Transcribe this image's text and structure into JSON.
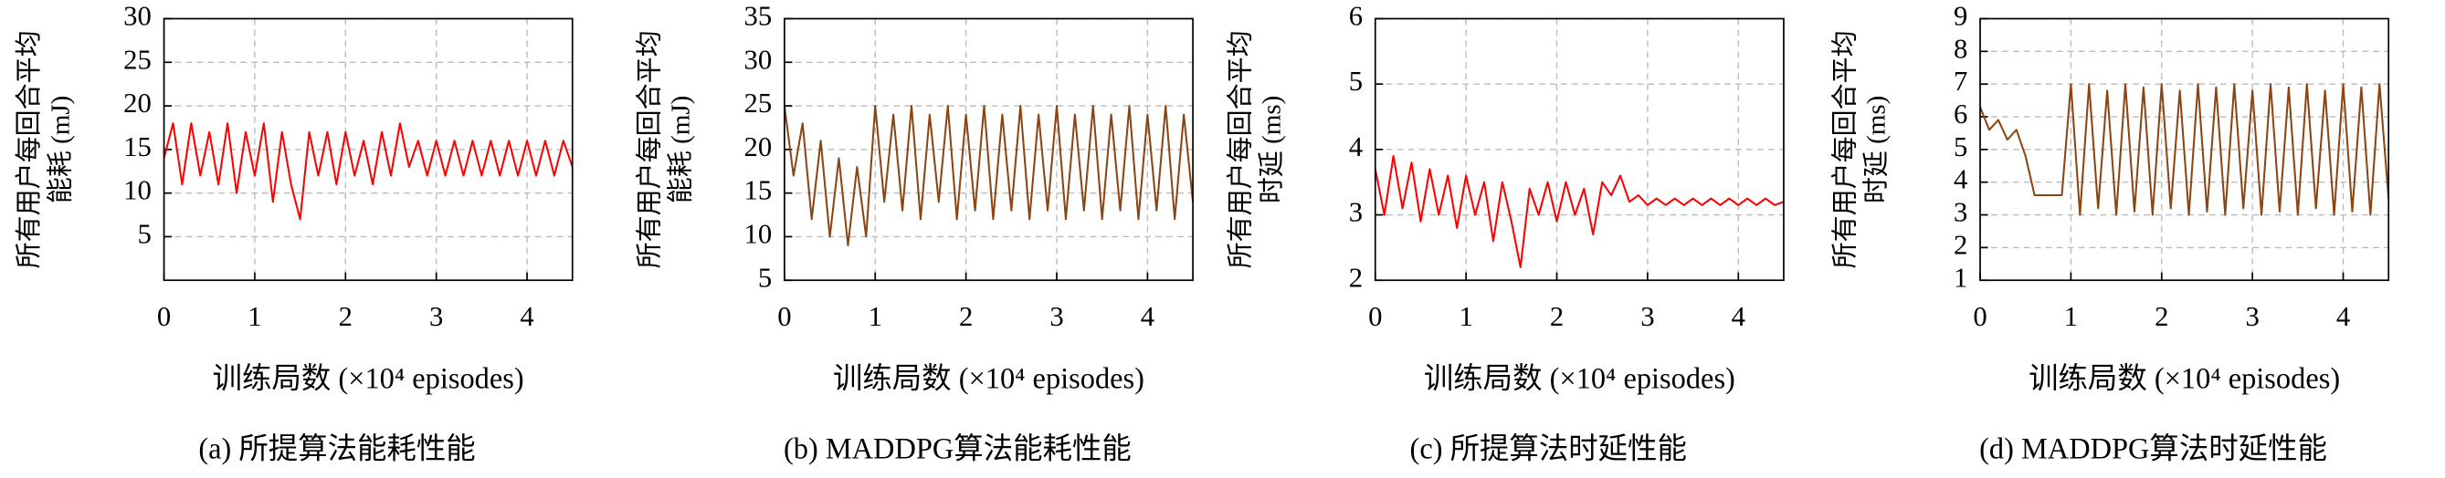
{
  "chart_data": [
    {
      "type": "line",
      "caption": "(a) 所提算法能耗性能",
      "xlabel": "训练局数 (×10⁴ episodes)",
      "ylabel": [
        "所有用户每回合平均",
        "能耗 (mJ)"
      ],
      "xlim": [
        0,
        4.5
      ],
      "xticks": [
        0,
        1,
        2,
        3,
        4
      ],
      "ylim": [
        0,
        30
      ],
      "yticks": [
        5,
        10,
        15,
        20,
        25,
        30
      ],
      "grid": true,
      "series": [
        {
          "color": "#ff0000",
          "x": [
            0,
            0.1,
            0.2,
            0.3,
            0.4,
            0.5,
            0.6,
            0.7,
            0.8,
            0.9,
            1.0,
            1.1,
            1.2,
            1.3,
            1.4,
            1.5,
            1.6,
            1.7,
            1.8,
            1.9,
            2.0,
            2.1,
            2.2,
            2.3,
            2.4,
            2.5,
            2.6,
            2.7,
            2.8,
            2.9,
            3.0,
            3.1,
            3.2,
            3.3,
            3.4,
            3.5,
            3.6,
            3.7,
            3.8,
            3.9,
            4.0,
            4.1,
            4.2,
            4.3,
            4.4,
            4.5
          ],
          "values": [
            14,
            18,
            11,
            18,
            12,
            17,
            11,
            18,
            10,
            17,
            12,
            18,
            9,
            17,
            11,
            7,
            17,
            12,
            17,
            11,
            17,
            12,
            16,
            11,
            17,
            12,
            18,
            13,
            16,
            12,
            16,
            12,
            16,
            12,
            16,
            12,
            16,
            12,
            16,
            12,
            16,
            12,
            16,
            12,
            16,
            13
          ]
        }
      ]
    },
    {
      "type": "line",
      "caption": "(b) MADDPG算法能耗性能",
      "xlabel": "训练局数 (×10⁴ episodes)",
      "ylabel": [
        "所有用户每回合平均",
        "能耗 (mJ)"
      ],
      "xlim": [
        0,
        4.5
      ],
      "xticks": [
        0,
        1,
        2,
        3,
        4
      ],
      "ylim": [
        5,
        35
      ],
      "yticks": [
        5,
        10,
        15,
        20,
        25,
        30,
        35
      ],
      "grid": true,
      "series": [
        {
          "color": "#8b4513",
          "x": [
            0,
            0.1,
            0.2,
            0.3,
            0.4,
            0.5,
            0.6,
            0.7,
            0.8,
            0.9,
            1.0,
            1.1,
            1.2,
            1.3,
            1.4,
            1.5,
            1.6,
            1.7,
            1.8,
            1.9,
            2.0,
            2.1,
            2.2,
            2.3,
            2.4,
            2.5,
            2.6,
            2.7,
            2.8,
            2.9,
            3.0,
            3.1,
            3.2,
            3.3,
            3.4,
            3.5,
            3.6,
            3.7,
            3.8,
            3.9,
            4.0,
            4.1,
            4.2,
            4.3,
            4.4,
            4.5
          ],
          "values": [
            25,
            17,
            23,
            12,
            21,
            10,
            19,
            9,
            18,
            10,
            25,
            14,
            24,
            13,
            25,
            12,
            24,
            14,
            25,
            12,
            24,
            13,
            25,
            12,
            24,
            13,
            25,
            12,
            24,
            13,
            25,
            12,
            24,
            13,
            25,
            12,
            24,
            13,
            25,
            12,
            24,
            13,
            25,
            12,
            24,
            14
          ]
        }
      ]
    },
    {
      "type": "line",
      "caption": "(c) 所提算法时延性能",
      "xlabel": "训练局数 (×10⁴ episodes)",
      "ylabel": [
        "所有用户每回合平均",
        "时延 (ms)"
      ],
      "xlim": [
        0,
        4.5
      ],
      "xticks": [
        0,
        1,
        2,
        3,
        4
      ],
      "ylim": [
        2,
        6
      ],
      "yticks": [
        2,
        3,
        4,
        5,
        6
      ],
      "grid": true,
      "series": [
        {
          "color": "#ff0000",
          "x": [
            0,
            0.1,
            0.2,
            0.3,
            0.4,
            0.5,
            0.6,
            0.7,
            0.8,
            0.9,
            1.0,
            1.1,
            1.2,
            1.3,
            1.4,
            1.5,
            1.6,
            1.7,
            1.8,
            1.9,
            2.0,
            2.1,
            2.2,
            2.3,
            2.4,
            2.5,
            2.6,
            2.7,
            2.8,
            2.9,
            3.0,
            3.1,
            3.2,
            3.3,
            3.4,
            3.5,
            3.6,
            3.7,
            3.8,
            3.9,
            4.0,
            4.1,
            4.2,
            4.3,
            4.4,
            4.5
          ],
          "values": [
            3.7,
            3.0,
            3.9,
            3.1,
            3.8,
            2.9,
            3.7,
            3.0,
            3.6,
            2.8,
            3.6,
            3.0,
            3.5,
            2.6,
            3.5,
            2.9,
            2.2,
            3.4,
            3.0,
            3.5,
            2.9,
            3.5,
            3.0,
            3.4,
            2.7,
            3.5,
            3.3,
            3.6,
            3.2,
            3.3,
            3.15,
            3.25,
            3.15,
            3.25,
            3.15,
            3.25,
            3.15,
            3.25,
            3.15,
            3.25,
            3.15,
            3.25,
            3.15,
            3.25,
            3.15,
            3.2
          ]
        }
      ]
    },
    {
      "type": "line",
      "caption": "(d) MADDPG算法时延性能",
      "xlabel": "训练局数 (×10⁴ episodes)",
      "ylabel": [
        "所有用户每回合平均",
        "时延 (ms)"
      ],
      "xlim": [
        0,
        4.5
      ],
      "xticks": [
        0,
        1,
        2,
        3,
        4
      ],
      "ylim": [
        1,
        9
      ],
      "yticks": [
        1,
        2,
        3,
        4,
        5,
        6,
        7,
        8,
        9
      ],
      "grid": true,
      "series": [
        {
          "color": "#8b4513",
          "x": [
            0,
            0.1,
            0.2,
            0.3,
            0.4,
            0.5,
            0.6,
            0.7,
            0.8,
            0.9,
            1.0,
            1.1,
            1.2,
            1.3,
            1.4,
            1.5,
            1.6,
            1.7,
            1.8,
            1.9,
            2.0,
            2.1,
            2.2,
            2.3,
            2.4,
            2.5,
            2.6,
            2.7,
            2.8,
            2.9,
            3.0,
            3.1,
            3.2,
            3.3,
            3.4,
            3.5,
            3.6,
            3.7,
            3.8,
            3.9,
            4.0,
            4.1,
            4.2,
            4.3,
            4.4,
            4.5
          ],
          "values": [
            6.3,
            5.6,
            5.9,
            5.3,
            5.6,
            4.8,
            3.6,
            3.6,
            3.6,
            3.6,
            7,
            3,
            7,
            3.2,
            6.8,
            3,
            7,
            3.1,
            6.9,
            3,
            7,
            3.2,
            6.8,
            3,
            7,
            3.1,
            6.9,
            3,
            7,
            3.2,
            6.8,
            3,
            7,
            3.1,
            6.9,
            3,
            7,
            3.2,
            6.8,
            3,
            7,
            3.1,
            6.9,
            3,
            7,
            3.5
          ]
        }
      ]
    }
  ]
}
